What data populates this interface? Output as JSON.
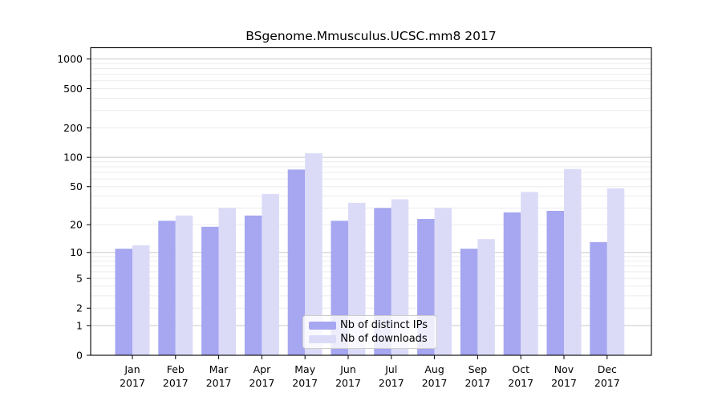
{
  "chart_data": {
    "type": "bar",
    "title": "BSgenome.Mmusculus.UCSC.mm8 2017",
    "categories": [
      "Jan",
      "Feb",
      "Mar",
      "Apr",
      "May",
      "Jun",
      "Jul",
      "Aug",
      "Sep",
      "Oct",
      "Nov",
      "Dec"
    ],
    "category_year": "2017",
    "series": [
      {
        "name": "Nb of distinct IPs",
        "color": "#a6a6f1",
        "values": [
          11,
          22,
          19,
          25,
          75,
          22,
          30,
          23,
          11,
          27,
          28,
          13
        ]
      },
      {
        "name": "Nb of downloads",
        "color": "#dbdbf8",
        "values": [
          12,
          25,
          30,
          42,
          110,
          34,
          37,
          30,
          14,
          44,
          76,
          48
        ]
      }
    ],
    "y_axis": {
      "scale": "log1p",
      "tick_values": [
        0,
        1,
        2,
        5,
        10,
        20,
        50,
        100,
        200,
        500,
        1000
      ],
      "tick_labels": [
        "0",
        "1",
        "2",
        "5",
        "10",
        "20",
        "50",
        "100",
        "200",
        "500",
        "1000"
      ],
      "major_gridlines": [
        1,
        10,
        100,
        1000
      ],
      "minor_gridlines": [
        2,
        3,
        4,
        5,
        6,
        7,
        8,
        9,
        20,
        30,
        40,
        50,
        60,
        70,
        80,
        90,
        200,
        300,
        400,
        500,
        600,
        700,
        800,
        900
      ],
      "ylim_top": 1300
    },
    "grid": true,
    "legend_position": "lower center",
    "colors": {
      "grid_major": "#c9c9c9",
      "grid_minor": "#ececec",
      "axis": "#000000",
      "text": "#000000",
      "legend_border": "#cccccc"
    }
  }
}
